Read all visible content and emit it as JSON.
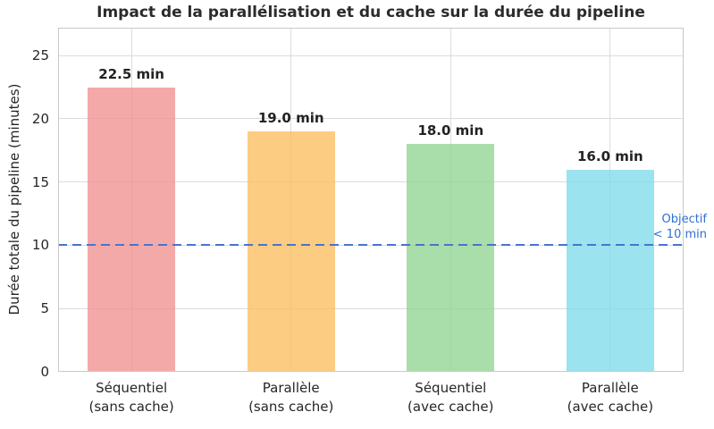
{
  "chart_data": {
    "type": "bar",
    "title": "Impact de la parallélisation et du cache sur la durée du pipeline",
    "ylabel": "Durée totale du pipeline (minutes)",
    "xlabel": "",
    "categories": [
      "Séquentiel\n(sans cache)",
      "Parallèle\n(sans cache)",
      "Séquentiel\n(avec cache)",
      "Parallèle\n(avec cache)"
    ],
    "values": [
      22.5,
      19.0,
      18.0,
      16.0
    ],
    "bar_labels": [
      "22.5 min",
      "19.0 min",
      "18.0 min",
      "16.0 min"
    ],
    "bar_colors": [
      "rgba(241,148,148,0.8)",
      "rgba(252,191,100,0.8)",
      "rgba(148,212,148,0.8)",
      "rgba(130,220,235,0.8)"
    ],
    "yticks": [
      0,
      5,
      10,
      15,
      20,
      25
    ],
    "ylim": [
      0,
      27.2
    ],
    "grid": true,
    "legend": "none",
    "target_line": {
      "value": 10,
      "style": "dashed",
      "color": "#4874CE"
    },
    "annotation": {
      "line1": "Objectif",
      "line2": "< 10 min",
      "color": "#2F6FD2"
    },
    "colors": {
      "text": "#262626",
      "title": "#2b2b2b",
      "grid": "#dcdcdc",
      "spine": "#c9c9c9",
      "background": "#ffffff"
    }
  }
}
